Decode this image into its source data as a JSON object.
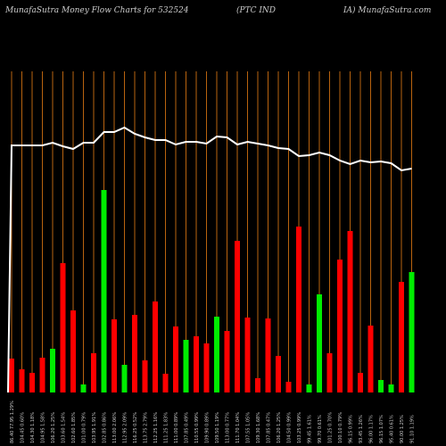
{
  "chart_data": {
    "type": "bar",
    "title": "MunafaSutra  Money Flow  Charts for 532524",
    "subtitle": "(PTC IND",
    "subtitle2": "IA) MunafaSutra.com",
    "categories": [
      "86.40 77.95 1.29%",
      "104.45 0.60%",
      "104.30 1.18%",
      "104.95 1.58%",
      "106.20 1.25%",
      "103.60 1.54%",
      "102.60 1.85%",
      "101.00 0.79%",
      "103.95 1.91%",
      "102.85 0.86%",
      "113.00 2.06%",
      "112.95 2.09%",
      "116.25 0.52%",
      "113.75 2.79%",
      "112.25 1.16%",
      "111.25 1.83%",
      "111.00 0.89%",
      "107.85 0.49%",
      "110.55 0.99%",
      "109.90 0.89%",
      "109.50 1.19%",
      "113.00 0.77%",
      "111.70 1.04%",
      "107.55 1.05%",
      "109.30 1.68%",
      "107.85 0.47%",
      "106.20 1.25%",
      "104.50 0.99%",
      "103.25 0.99%",
      "99.45 1.61%",
      "99.70 0.61%",
      "101.25 0.70%",
      "100.10 0.79%",
      "96.15 0.99%",
      "93.45 1.26%",
      "96.00 1.17%",
      "96.15 1.07%",
      "95.40 0.61%",
      "90.00 1.25%",
      "91.10 1.19%"
    ],
    "bar_colors": [
      "#ff0000",
      "#ff0000",
      "#ff0000",
      "#ff0000",
      "#00ee00",
      "#ff0000",
      "#ff0000",
      "#00ee00",
      "#ff0000",
      "#00ee00",
      "#ff0000",
      "#00ee00",
      "#ff0000",
      "#ff0000",
      "#ff0000",
      "#ff0000",
      "#ff0000",
      "#00ee00",
      "#ff0000",
      "#ff0000",
      "#00ee00",
      "#ff0000",
      "#ff0000",
      "#ff0000",
      "#ff0000",
      "#ff0000",
      "#ff0000",
      "#ff0000",
      "#ff0000",
      "#00ee00",
      "#00ee00",
      "#ff0000",
      "#ff0000",
      "#ff0000",
      "#ff0000",
      "#ff0000",
      "#00ee00",
      "#00ee00",
      "#ff0000",
      "#00ee00"
    ],
    "values": [
      38,
      26,
      22,
      39,
      49,
      145,
      92,
      9,
      44,
      227,
      82,
      31,
      87,
      36,
      102,
      21,
      74,
      59,
      63,
      55,
      85,
      69,
      170,
      84,
      16,
      83,
      41,
      12,
      186,
      9,
      110,
      44,
      149,
      181,
      22,
      75,
      14,
      9,
      124,
      135
    ],
    "line": [
      277,
      277,
      277,
      277,
      280,
      276,
      273,
      280,
      280,
      292,
      292,
      297,
      290,
      286,
      283,
      283,
      278,
      281,
      281,
      279,
      287,
      286,
      278,
      281,
      279,
      277,
      274,
      273,
      265,
      266,
      269,
      266,
      260,
      256,
      260,
      258,
      259,
      257,
      249,
      251
    ],
    "line_color": "#ffffff",
    "grid_color": "#b8630f",
    "ylim": [
      0,
      360
    ]
  }
}
